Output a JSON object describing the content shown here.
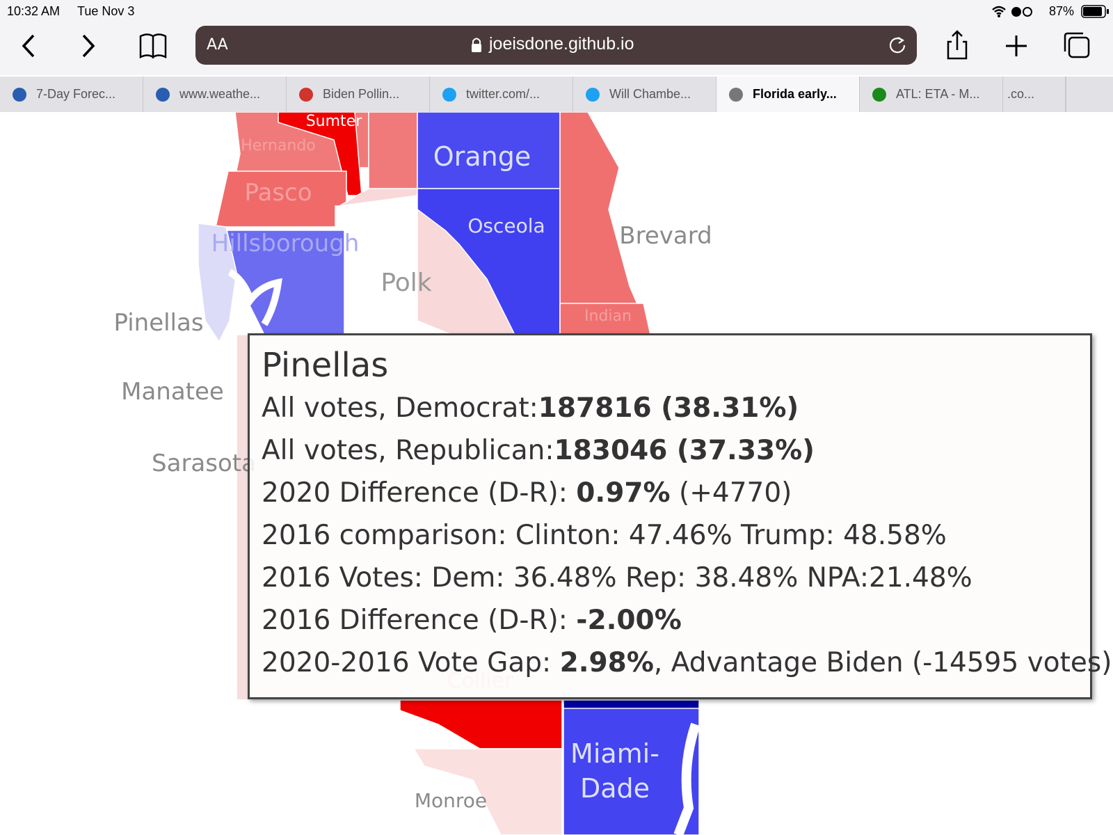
{
  "status_bar": {
    "time": "10:32 AM",
    "date": "Tue Nov 3",
    "battery": "87%"
  },
  "toolbar": {
    "text_size": "AA",
    "url": "joeisdone.github.io"
  },
  "tabs": [
    {
      "title": "7-Day Forec...",
      "icon": "#2a5db0"
    },
    {
      "title": "www.weathe...",
      "icon": "#2a5db0"
    },
    {
      "title": "Biden Pollin...",
      "icon": "#d0342c"
    },
    {
      "title": "twitter.com/...",
      "icon": "#1da1f2"
    },
    {
      "title": "Will Chambe...",
      "icon": "#1da1f2"
    },
    {
      "title": "Florida early...",
      "icon": "#777777",
      "active": true
    },
    {
      "title": "ATL: ETA - M...",
      "icon": "#1a8a1a"
    },
    {
      "title": ".co..."
    }
  ],
  "map": {
    "counties": [
      {
        "name": "Sumter"
      },
      {
        "name": "Hernando"
      },
      {
        "name": "Orange"
      },
      {
        "name": "Pasco"
      },
      {
        "name": "Osceola"
      },
      {
        "name": "Brevard"
      },
      {
        "name": "Hillsborough"
      },
      {
        "name": "Polk"
      },
      {
        "name": "Pinellas"
      },
      {
        "name": "Indian"
      },
      {
        "name": "Manatee"
      },
      {
        "name": "Sarasota"
      },
      {
        "name": "Collier"
      },
      {
        "name": "Miami-Dade"
      },
      {
        "name": "Monroe"
      }
    ]
  },
  "tooltip": {
    "title": "Pinellas",
    "lines": [
      [
        {
          "text": "All votes, Democrat:"
        },
        {
          "text": "187816 (38.31%)",
          "bold": true
        }
      ],
      [
        {
          "text": "All votes, Republican:"
        },
        {
          "text": "183046 (37.33%)",
          "bold": true
        }
      ],
      [
        {
          "text": "2020 Difference (D-R): "
        },
        {
          "text": "0.97%",
          "bold": true
        },
        {
          "text": " (+4770)"
        }
      ],
      [
        {
          "text": "2016 comparison: Clinton: 47.46% Trump: 48.58%"
        }
      ],
      [
        {
          "text": "2016 Votes: Dem: 36.48% Rep: 38.48% NPA:21.48%"
        }
      ],
      [
        {
          "text": "2016 Difference (D-R): "
        },
        {
          "text": "-2.00%",
          "bold": true
        }
      ],
      [
        {
          "text": "2020-2016 Vote Gap: "
        },
        {
          "text": "2.98%",
          "bold": true
        },
        {
          "text": ", Advantage Biden (-14595 votes)"
        }
      ]
    ]
  }
}
